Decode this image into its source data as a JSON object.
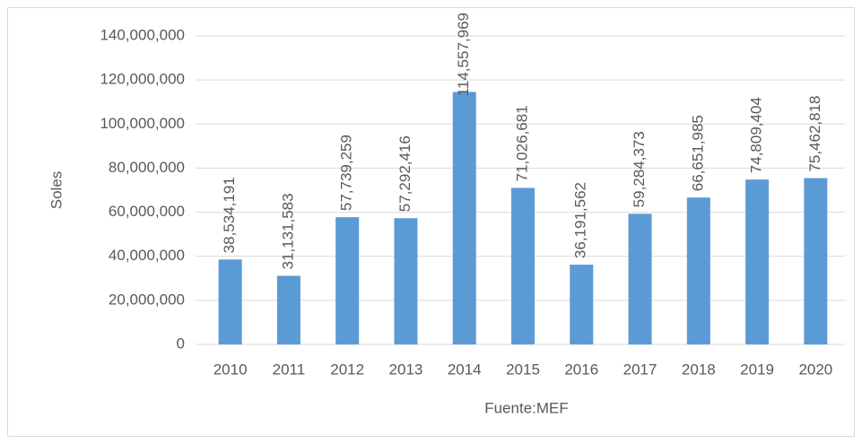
{
  "chart_data": {
    "type": "bar",
    "categories": [
      "2010",
      "2011",
      "2012",
      "2013",
      "2014",
      "2015",
      "2016",
      "2017",
      "2018",
      "2019",
      "2020"
    ],
    "values": [
      38534191,
      31131583,
      57739259,
      57292416,
      114557969,
      71026681,
      36191562,
      59284373,
      66651985,
      74809404,
      75462818
    ],
    "value_labels": [
      "38,534,191",
      "31,131,583",
      "57,739,259",
      "57,292,416",
      "114,557,969",
      "71,026,681",
      "36,191,562",
      "59,284,373",
      "66,651,985",
      "74,809,404",
      "75,462,818"
    ],
    "color": "#5b9bd5",
    "ylabel": "Soles",
    "xlabel": "Fuente:MEF",
    "ylim": [
      0,
      140000000
    ],
    "yticks": [
      0,
      {
        "value": 20000000,
        "label": "20,000,000"
      },
      {
        "value": 40000000,
        "label": "40,000,000"
      },
      {
        "value": 60000000,
        "label": "60,000,000"
      },
      {
        "value": 80000000,
        "label": "80,000,000"
      },
      {
        "value": 100000000,
        "label": "100,000,000"
      },
      {
        "value": 120000000,
        "label": "120,000,000"
      },
      {
        "value": 140000000,
        "label": "140,000,000"
      }
    ],
    "grid": true
  }
}
